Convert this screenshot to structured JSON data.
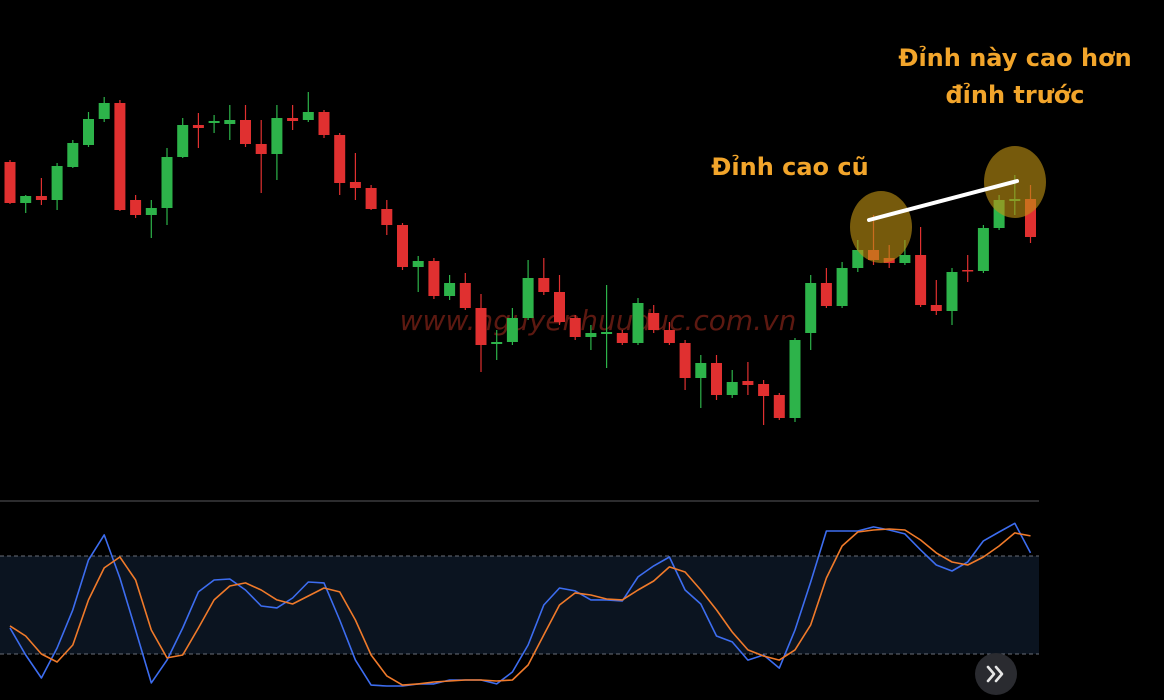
{
  "chart_data": [
    {
      "type": "candlestick",
      "up_color": "#2db34a",
      "down_color": "#e03030",
      "ylim": [
        0,
        100
      ],
      "annotations": [
        "Đỉnh cao cũ",
        "Đỉnh này cao hơn",
        "đỉnh trước"
      ],
      "watermark": "www.nguyenhuuduc.com.vn",
      "open": [
        67.6,
        59.4,
        60.8,
        60,
        66.6,
        71,
        76.2,
        79.4,
        60,
        57,
        58.4,
        68.6,
        75,
        75.4,
        75.2,
        76,
        71.2,
        69.2,
        76.4,
        76,
        77.6,
        73,
        63.6,
        62.4,
        58.2,
        55,
        46.6,
        47.8,
        40.8,
        43.4,
        38.4,
        31.2,
        31.6,
        36.4,
        44.4,
        41.6,
        36.4,
        32.6,
        33.2,
        33.4,
        31.4,
        37.4,
        34,
        31.4,
        24.4,
        27.4,
        21,
        23.8,
        23.2,
        21,
        16.4,
        33.4,
        43.4,
        38.8,
        46.4,
        50,
        48.4,
        47.4,
        49,
        39,
        37.8,
        46,
        45.8,
        54.4,
        59.8,
        60.2
      ],
      "close": [
        59.4,
        60.8,
        60,
        66.8,
        71.4,
        76.2,
        79.4,
        58,
        57,
        58.4,
        68.6,
        75,
        74.4,
        75.8,
        76,
        71.2,
        69.2,
        76.4,
        75.8,
        77.6,
        73,
        63.4,
        62.4,
        58.2,
        55,
        46.6,
        47.8,
        40.8,
        43.4,
        38.4,
        31,
        31.6,
        36.4,
        44.4,
        41.6,
        35.6,
        32.6,
        33.4,
        33.6,
        31.4,
        39.4,
        34,
        31.4,
        24.4,
        27.4,
        21,
        23.6,
        23,
        20.8,
        16.4,
        32,
        43.4,
        38.8,
        46.4,
        50,
        48,
        47.4,
        49,
        39,
        37.8,
        45.6,
        45.8,
        54.4,
        60,
        60.2,
        52.6
      ],
      "high": [
        68,
        61,
        64.4,
        67.4,
        72,
        77.6,
        80.6,
        80,
        61,
        60,
        70.4,
        76.4,
        77.4,
        77,
        79,
        79,
        76,
        79,
        79,
        81.6,
        78,
        73.4,
        69.4,
        63,
        60,
        55.4,
        48.8,
        48.4,
        45,
        45.4,
        41.2,
        34,
        38.4,
        48,
        48.4,
        45,
        37,
        35,
        43,
        34,
        40.4,
        39,
        35.6,
        32,
        29,
        29,
        26,
        27.6,
        24,
        21.4,
        32.4,
        45,
        46.4,
        47.6,
        52,
        57,
        51,
        52,
        54.6,
        44,
        46.4,
        49,
        55,
        61,
        65,
        63
      ],
      "low": [
        59.2,
        57.4,
        59,
        58,
        66.4,
        70.6,
        75.6,
        57.8,
        56.4,
        52.4,
        55,
        68.4,
        70.4,
        73.4,
        72,
        70.6,
        61.4,
        64,
        74,
        75.6,
        72.4,
        61,
        60,
        58,
        53,
        46,
        41.6,
        40.2,
        40,
        38,
        25.6,
        28,
        31,
        36,
        41,
        35,
        32,
        30,
        26.4,
        31,
        31,
        33.4,
        31,
        22,
        18.4,
        20,
        20.4,
        21,
        15,
        16,
        15.6,
        30,
        38.4,
        38.4,
        45.6,
        47,
        46.4,
        47,
        38.6,
        37,
        35,
        43.6,
        45.4,
        54,
        57,
        51.4
      ]
    },
    {
      "type": "line",
      "ylim": [
        0,
        100
      ],
      "levels": [
        20,
        80
      ],
      "band_color": "#0b1420",
      "series": [
        {
          "color": "#3d6df0",
          "values": [
            35.9,
            19.4,
            5.3,
            23.7,
            47,
            77.6,
            92.9,
            66.5,
            34.7,
            2.3,
            16.3,
            35.9,
            58,
            65.3,
            65.9,
            59.2,
            49.4,
            48.2,
            54.3,
            64.1,
            63.5,
            40.8,
            16.3,
            1,
            0.4,
            0.4,
            1.7,
            1.7,
            4.1,
            4.1,
            4.1,
            1.7,
            9,
            25.5,
            50,
            60.4,
            58.6,
            53.1,
            53.1,
            52.5,
            67.2,
            73.9,
            79.4,
            59.2,
            50.6,
            31,
            27.4,
            16.3,
            19.4,
            11.4,
            34.7,
            64.1,
            95.3,
            95.3,
            95.3,
            97.8,
            95.9,
            93.5,
            83.7,
            74.5,
            70.8,
            76.3,
            89.2,
            94.7,
            100,
            81.9
          ]
        },
        {
          "color": "#f07a2a",
          "values": [
            37.2,
            31,
            20,
            15.1,
            25.5,
            53.1,
            72.7,
            79.4,
            65.3,
            34.7,
            17.6,
            19.4,
            35.9,
            53.1,
            61.6,
            63.5,
            59.2,
            53.1,
            50.6,
            55.5,
            60.4,
            58,
            40.8,
            19.4,
            6.6,
            1,
            1.7,
            2.9,
            3.5,
            4.1,
            4.1,
            3.5,
            4.1,
            13.3,
            31.7,
            50,
            57.4,
            56.1,
            53.7,
            53.1,
            59.2,
            64.7,
            73.3,
            70.2,
            59.2,
            47,
            33.5,
            22.5,
            18.8,
            16.3,
            22.5,
            37.8,
            66.5,
            86.1,
            94.7,
            95.9,
            96.5,
            95.9,
            89.8,
            81.9,
            76.3,
            74.5,
            79.4,
            86.1,
            94.1,
            92.3
          ]
        }
      ]
    }
  ]
}
